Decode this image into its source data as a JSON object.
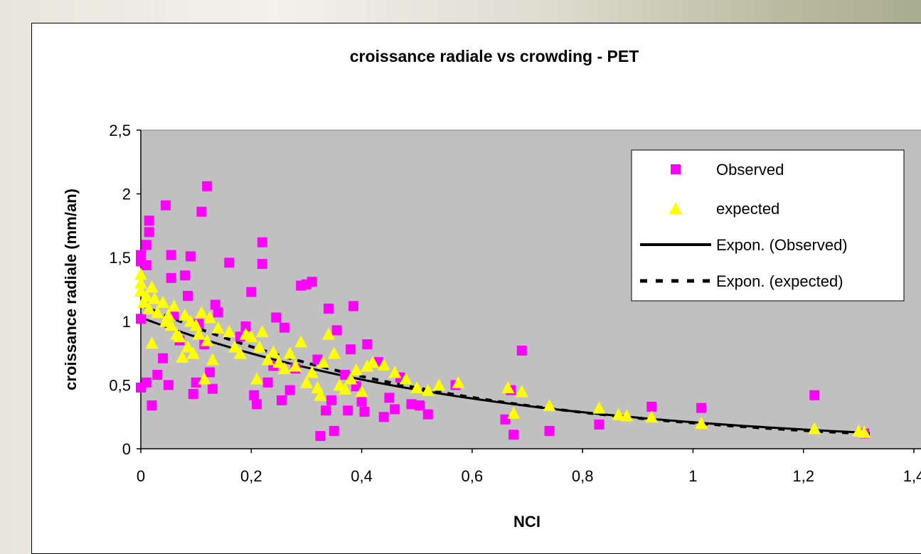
{
  "chart_data": {
    "type": "scatter",
    "title": "croissance radiale vs crowding - PET",
    "xlabel": "NCI",
    "ylabel": "croissance radiale (mm/an)",
    "xlim": [
      0,
      1.4
    ],
    "ylim": [
      0,
      2.5
    ],
    "x_ticks": [
      "0",
      "0,2",
      "0,4",
      "0,6",
      "0,8",
      "1",
      "1,2",
      "1,4"
    ],
    "y_ticks": [
      "0",
      "0,5",
      "1",
      "1,5",
      "2",
      "2,5"
    ],
    "grid": false,
    "plot_background": "#c0c0c0",
    "legend_position": "top-right",
    "series": [
      {
        "name": "Observed",
        "marker": "square",
        "color": "#ff00ff",
        "points": [
          [
            0.0,
            1.52
          ],
          [
            0.0,
            1.47
          ],
          [
            0.0,
            1.02
          ],
          [
            0.0,
            0.48
          ],
          [
            0.01,
            1.6
          ],
          [
            0.01,
            1.44
          ],
          [
            0.01,
            0.52
          ],
          [
            0.015,
            1.79
          ],
          [
            0.015,
            1.7
          ],
          [
            0.02,
            0.34
          ],
          [
            0.03,
            0.58
          ],
          [
            0.04,
            0.71
          ],
          [
            0.045,
            1.91
          ],
          [
            0.05,
            0.5
          ],
          [
            0.055,
            1.52
          ],
          [
            0.055,
            1.34
          ],
          [
            0.06,
            1.05
          ],
          [
            0.07,
            0.85
          ],
          [
            0.08,
            1.36
          ],
          [
            0.085,
            1.2
          ],
          [
            0.09,
            1.51
          ],
          [
            0.095,
            0.43
          ],
          [
            0.1,
            0.52
          ],
          [
            0.105,
            0.98
          ],
          [
            0.11,
            1.86
          ],
          [
            0.115,
            0.82
          ],
          [
            0.12,
            2.06
          ],
          [
            0.125,
            0.6
          ],
          [
            0.13,
            0.47
          ],
          [
            0.135,
            1.13
          ],
          [
            0.14,
            1.07
          ],
          [
            0.16,
            1.46
          ],
          [
            0.18,
            0.88
          ],
          [
            0.19,
            0.96
          ],
          [
            0.2,
            1.23
          ],
          [
            0.205,
            0.42
          ],
          [
            0.21,
            0.35
          ],
          [
            0.22,
            1.62
          ],
          [
            0.22,
            1.45
          ],
          [
            0.23,
            0.52
          ],
          [
            0.24,
            0.65
          ],
          [
            0.245,
            1.03
          ],
          [
            0.255,
            0.38
          ],
          [
            0.26,
            0.95
          ],
          [
            0.27,
            0.46
          ],
          [
            0.28,
            0.63
          ],
          [
            0.29,
            1.28
          ],
          [
            0.3,
            1.29
          ],
          [
            0.31,
            1.31
          ],
          [
            0.32,
            0.7
          ],
          [
            0.325,
            0.1
          ],
          [
            0.335,
            0.3
          ],
          [
            0.34,
            1.1
          ],
          [
            0.345,
            0.38
          ],
          [
            0.35,
            0.14
          ],
          [
            0.355,
            0.93
          ],
          [
            0.37,
            0.58
          ],
          [
            0.375,
            0.3
          ],
          [
            0.38,
            0.78
          ],
          [
            0.385,
            1.12
          ],
          [
            0.39,
            0.49
          ],
          [
            0.4,
            0.37
          ],
          [
            0.405,
            0.29
          ],
          [
            0.41,
            0.82
          ],
          [
            0.43,
            0.68
          ],
          [
            0.44,
            0.25
          ],
          [
            0.45,
            0.4
          ],
          [
            0.46,
            0.31
          ],
          [
            0.47,
            0.56
          ],
          [
            0.49,
            0.35
          ],
          [
            0.505,
            0.34
          ],
          [
            0.52,
            0.27
          ],
          [
            0.57,
            0.5
          ],
          [
            0.66,
            0.23
          ],
          [
            0.67,
            0.46
          ],
          [
            0.675,
            0.11
          ],
          [
            0.69,
            0.77
          ],
          [
            0.74,
            0.14
          ],
          [
            0.83,
            0.19
          ],
          [
            0.925,
            0.33
          ],
          [
            1.015,
            0.32
          ],
          [
            1.22,
            0.42
          ],
          [
            1.31,
            0.12
          ]
        ]
      },
      {
        "name": "expected",
        "marker": "triangle",
        "color": "#ffff00",
        "points": [
          [
            0.0,
            1.37
          ],
          [
            0.0,
            1.3
          ],
          [
            0.0,
            1.24
          ],
          [
            0.005,
            1.15
          ],
          [
            0.01,
            1.2
          ],
          [
            0.015,
            1.1
          ],
          [
            0.02,
            1.27
          ],
          [
            0.02,
            0.83
          ],
          [
            0.025,
            1.18
          ],
          [
            0.03,
            1.07
          ],
          [
            0.04,
            1.15
          ],
          [
            0.045,
            1.0
          ],
          [
            0.05,
            1.05
          ],
          [
            0.055,
            0.97
          ],
          [
            0.06,
            1.12
          ],
          [
            0.065,
            0.9
          ],
          [
            0.07,
            0.88
          ],
          [
            0.075,
            0.72
          ],
          [
            0.08,
            1.05
          ],
          [
            0.085,
            0.8
          ],
          [
            0.09,
            1.0
          ],
          [
            0.095,
            0.75
          ],
          [
            0.1,
            0.97
          ],
          [
            0.105,
            0.9
          ],
          [
            0.11,
            1.07
          ],
          [
            0.115,
            0.55
          ],
          [
            0.12,
            0.85
          ],
          [
            0.125,
            1.03
          ],
          [
            0.13,
            0.7
          ],
          [
            0.14,
            0.95
          ],
          [
            0.16,
            0.92
          ],
          [
            0.17,
            0.8
          ],
          [
            0.18,
            0.75
          ],
          [
            0.19,
            0.9
          ],
          [
            0.2,
            0.88
          ],
          [
            0.21,
            0.55
          ],
          [
            0.215,
            0.8
          ],
          [
            0.22,
            0.92
          ],
          [
            0.23,
            0.7
          ],
          [
            0.24,
            0.76
          ],
          [
            0.25,
            0.68
          ],
          [
            0.26,
            0.63
          ],
          [
            0.27,
            0.75
          ],
          [
            0.28,
            0.65
          ],
          [
            0.29,
            0.84
          ],
          [
            0.3,
            0.52
          ],
          [
            0.31,
            0.6
          ],
          [
            0.32,
            0.48
          ],
          [
            0.325,
            0.42
          ],
          [
            0.33,
            0.68
          ],
          [
            0.34,
            0.9
          ],
          [
            0.35,
            0.75
          ],
          [
            0.36,
            0.5
          ],
          [
            0.37,
            0.47
          ],
          [
            0.38,
            0.55
          ],
          [
            0.39,
            0.62
          ],
          [
            0.4,
            0.45
          ],
          [
            0.41,
            0.65
          ],
          [
            0.42,
            0.68
          ],
          [
            0.44,
            0.66
          ],
          [
            0.46,
            0.6
          ],
          [
            0.48,
            0.55
          ],
          [
            0.5,
            0.48
          ],
          [
            0.52,
            0.46
          ],
          [
            0.54,
            0.5
          ],
          [
            0.575,
            0.52
          ],
          [
            0.665,
            0.48
          ],
          [
            0.675,
            0.28
          ],
          [
            0.69,
            0.45
          ],
          [
            0.74,
            0.34
          ],
          [
            0.83,
            0.32
          ],
          [
            0.865,
            0.27
          ],
          [
            0.88,
            0.26
          ],
          [
            0.925,
            0.25
          ],
          [
            1.015,
            0.2
          ],
          [
            1.22,
            0.16
          ],
          [
            1.3,
            0.14
          ],
          [
            1.31,
            0.13
          ]
        ]
      },
      {
        "name": "Expon. (Observed)",
        "type": "trendline",
        "style": "solid",
        "color": "#000000",
        "a": 1.03,
        "b": -1.6,
        "x_range": [
          0,
          1.32
        ]
      },
      {
        "name": "Expon. (expected)",
        "type": "trendline",
        "style": "dashed",
        "color": "#000000",
        "a": 1.13,
        "b": -1.72,
        "x_range": [
          0,
          1.32
        ]
      }
    ]
  }
}
